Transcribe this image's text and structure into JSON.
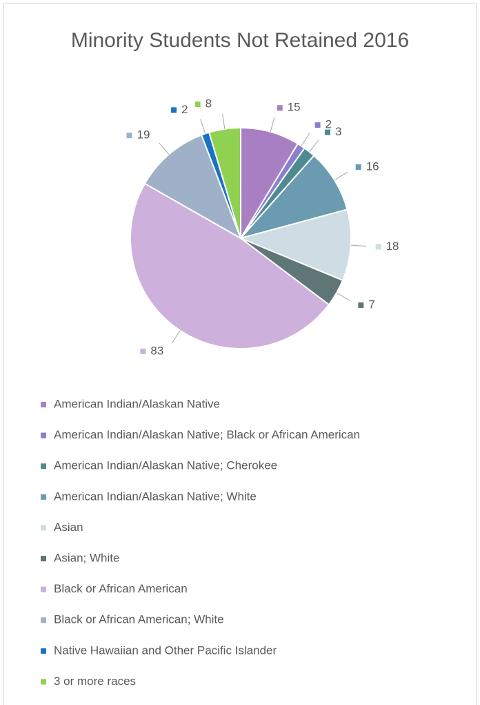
{
  "chart_data": {
    "type": "pie",
    "title": "Minority Students Not Retained 2016",
    "categories": [
      "American Indian/Alaskan Native",
      "American Indian/Alaskan Native; Black or African American",
      "American Indian/Alaskan Native; Cherokee",
      "American Indian/Alaskan Native; White",
      "Asian",
      "Asian; White",
      "Black or African American",
      "Black or African American; White",
      "Native Hawaiian and Other Pacific Islander",
      "3 or more races"
    ],
    "values": [
      15,
      2,
      3,
      16,
      18,
      7,
      83,
      19,
      2,
      8
    ],
    "colors": [
      "#a97fc4",
      "#8a7fcf",
      "#4e8a90",
      "#6a9bb0",
      "#cddde3",
      "#5f7676",
      "#cdb1dc",
      "#9fb1c8",
      "#1a73c0",
      "#8fd150"
    ],
    "legend": "bottom"
  }
}
